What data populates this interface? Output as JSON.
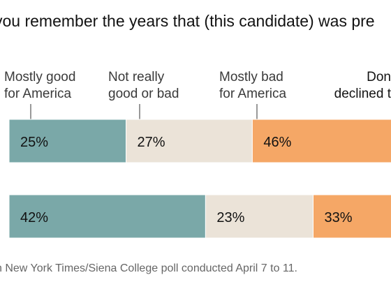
{
  "question": "you remember the years that (this candidate) was pre",
  "chart_data": {
    "type": "bar",
    "orientation": "horizontal-stacked",
    "categories": [
      "",
      ""
    ],
    "legend": [
      {
        "line1": "Mostly good",
        "line2": "for America",
        "color": "#7aa8a8"
      },
      {
        "line1": "Not really",
        "line2": "good or bad",
        "color": "#ebe3d8"
      },
      {
        "line1": "Mostly bad",
        "line2": "for America",
        "color": "#f5a766"
      },
      {
        "line1": "Don",
        "line2": "declined t",
        "color": "#f5a766"
      }
    ],
    "series": [
      {
        "values": [
          25,
          42
        ]
      },
      {
        "values": [
          27,
          23
        ]
      },
      {
        "values": [
          46,
          33
        ]
      }
    ],
    "value_labels": [
      [
        "25%",
        "42%"
      ],
      [
        "27%",
        "23%"
      ],
      [
        "46%",
        "33%"
      ]
    ]
  },
  "source": "n New York Times/Siena College poll conducted April 7 to 11."
}
